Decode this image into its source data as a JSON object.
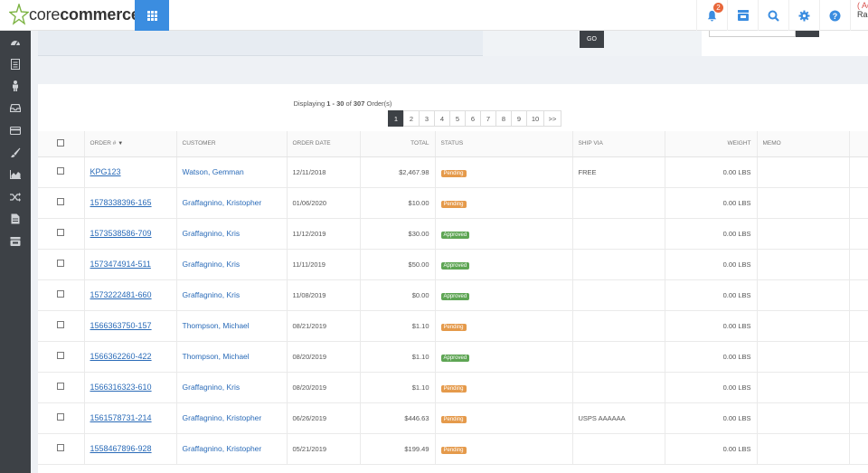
{
  "header": {
    "logo_prefix": "core",
    "logo_suffix": "commerce",
    "notification_count": "2",
    "user_line1": "( Ac",
    "user_line2": "Ra"
  },
  "filter": {
    "go_label": "GO"
  },
  "pager": {
    "prefix": "Displaying ",
    "range": "1 - 30",
    "of": " of ",
    "total": "307",
    "suffix": " Order(s)",
    "pages": [
      "1",
      "2",
      "3",
      "4",
      "5",
      "6",
      "7",
      "8",
      "9",
      "10",
      ">>"
    ],
    "active": "1"
  },
  "table": {
    "columns": [
      "",
      "ORDER #",
      "CUSTOMER",
      "ORDER DATE",
      "TOTAL",
      "STATUS",
      "SHIP VIA",
      "WEIGHT",
      "MEMO",
      ""
    ],
    "rows": [
      {
        "order": "KPG123",
        "customer": "Watson, Gemman",
        "date": "12/11/2018",
        "total": "$2,467.98",
        "status": "Pending",
        "ship": "FREE",
        "weight": "0.00 LBS"
      },
      {
        "order": "1578338396-165",
        "customer": "Graffagnino, Kristopher",
        "date": "01/06/2020",
        "total": "$10.00",
        "status": "Pending",
        "ship": "",
        "weight": "0.00 LBS"
      },
      {
        "order": "1573538586-709",
        "customer": "Graffagnino, Kris",
        "date": "11/12/2019",
        "total": "$30.00",
        "status": "Approved",
        "ship": "",
        "weight": "0.00 LBS"
      },
      {
        "order": "1573474914-511",
        "customer": "Graffagnino, Kris",
        "date": "11/11/2019",
        "total": "$50.00",
        "status": "Approved",
        "ship": "",
        "weight": "0.00 LBS"
      },
      {
        "order": "1573222481-660",
        "customer": "Graffagnino, Kris",
        "date": "11/08/2019",
        "total": "$0.00",
        "status": "Approved",
        "ship": "",
        "weight": "0.00 LBS"
      },
      {
        "order": "1566363750-157",
        "customer": "Thompson, Michael",
        "date": "08/21/2019",
        "total": "$1.10",
        "status": "Pending",
        "ship": "",
        "weight": "0.00 LBS"
      },
      {
        "order": "1566362260-422",
        "customer": "Thompson, Michael",
        "date": "08/20/2019",
        "total": "$1.10",
        "status": "Approved",
        "ship": "",
        "weight": "0.00 LBS"
      },
      {
        "order": "1566316323-610",
        "customer": "Graffagnino, Kris",
        "date": "08/20/2019",
        "total": "$1.10",
        "status": "Pending",
        "ship": "",
        "weight": "0.00 LBS"
      },
      {
        "order": "1561578731-214",
        "customer": "Graffagnino, Kristopher",
        "date": "06/26/2019",
        "total": "$446.63",
        "status": "Pending",
        "ship": "USPS AAAAAA",
        "weight": "0.00 LBS"
      },
      {
        "order": "1558467896-928",
        "customer": "Graffagnino, Kristopher",
        "date": "05/21/2019",
        "total": "$199.49",
        "status": "Pending",
        "ship": "",
        "weight": "0.00 LBS"
      }
    ]
  },
  "colors": {
    "accent": "#3b8de0",
    "sidebar": "#3d4146",
    "pending": "#e59a4b",
    "approved": "#5ea554",
    "link": "#2a6bb8"
  },
  "sidebar_icons": [
    "dashboard-icon",
    "orders-icon",
    "customers-icon",
    "inbox-icon",
    "billing-icon",
    "design-icon",
    "reports-icon",
    "integrations-icon",
    "content-icon",
    "store-icon"
  ]
}
